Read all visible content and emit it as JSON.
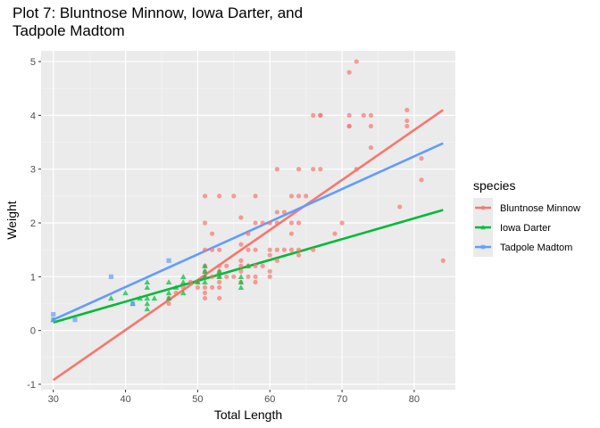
{
  "chart_data": {
    "type": "scatter",
    "title_lines": [
      "Plot 7: Bluntnose Minnow, Iowa Darter, and",
      "Tadpole Madtom"
    ],
    "xlabel": "Total Length",
    "ylabel": "Weight",
    "xlim": [
      28.3,
      85.7
    ],
    "ylim": [
      -1.1,
      5.2
    ],
    "x_ticks": [
      30,
      40,
      50,
      60,
      70,
      80
    ],
    "y_ticks": [
      -1,
      0,
      1,
      2,
      3,
      4,
      5
    ],
    "grid": true,
    "legend": {
      "title": "species",
      "placement": "right"
    },
    "series": [
      {
        "name": "Bluntnose Minnow",
        "color": "#F8766D",
        "marker": "circle",
        "fit": {
          "x": [
            30,
            84
          ],
          "y": [
            -0.92,
            4.1
          ]
        },
        "points": [
          [
            46,
            0.5
          ],
          [
            46,
            0.6
          ],
          [
            47,
            0.7
          ],
          [
            48,
            0.8
          ],
          [
            49,
            0.9
          ],
          [
            50,
            0.8
          ],
          [
            50,
            0.9
          ],
          [
            51,
            0.6
          ],
          [
            51,
            0.7
          ],
          [
            51,
            0.8
          ],
          [
            51,
            1.0
          ],
          [
            51,
            1.1
          ],
          [
            51,
            1.2
          ],
          [
            51,
            1.5
          ],
          [
            51,
            2.0
          ],
          [
            51,
            2.5
          ],
          [
            52,
            0.8
          ],
          [
            52,
            1.0
          ],
          [
            52,
            1.5
          ],
          [
            52,
            1.8
          ],
          [
            53,
            0.6
          ],
          [
            53,
            0.8
          ],
          [
            53,
            0.9
          ],
          [
            53,
            1.0
          ],
          [
            53,
            1.1
          ],
          [
            53,
            1.2
          ],
          [
            53,
            1.5
          ],
          [
            53,
            2.5
          ],
          [
            54,
            1.0
          ],
          [
            54,
            1.2
          ],
          [
            55,
            1.0
          ],
          [
            55,
            2.5
          ],
          [
            56,
            0.9
          ],
          [
            56,
            1.1
          ],
          [
            56,
            1.2
          ],
          [
            56,
            1.3
          ],
          [
            56,
            1.6
          ],
          [
            56,
            2.1
          ],
          [
            57,
            1.0
          ],
          [
            57,
            1.2
          ],
          [
            57,
            1.5
          ],
          [
            57,
            1.8
          ],
          [
            58,
            0.9
          ],
          [
            58,
            1.0
          ],
          [
            58,
            1.2
          ],
          [
            58,
            1.5
          ],
          [
            58,
            2.0
          ],
          [
            58,
            2.5
          ],
          [
            59,
            1.2
          ],
          [
            59,
            2.0
          ],
          [
            60,
            1.0
          ],
          [
            60,
            1.1
          ],
          [
            60,
            1.4
          ],
          [
            60,
            1.5
          ],
          [
            60,
            2.0
          ],
          [
            61,
            1.3
          ],
          [
            61,
            1.5
          ],
          [
            61,
            2.0
          ],
          [
            61,
            2.2
          ],
          [
            61,
            3.0
          ],
          [
            62,
            1.5
          ],
          [
            62,
            2.2
          ],
          [
            63,
            1.5
          ],
          [
            63,
            2.5
          ],
          [
            63,
            2.0
          ],
          [
            63,
            1.8
          ],
          [
            64,
            1.4
          ],
          [
            64,
            1.5
          ],
          [
            64,
            2.0
          ],
          [
            64,
            2.5
          ],
          [
            64,
            3.0
          ],
          [
            65,
            2.5
          ],
          [
            66,
            1.5
          ],
          [
            66,
            3.0
          ],
          [
            66,
            4.0
          ],
          [
            67,
            3.0
          ],
          [
            67,
            4.0
          ],
          [
            67,
            4.0
          ],
          [
            69,
            1.8
          ],
          [
            70,
            2.0
          ],
          [
            71,
            3.8
          ],
          [
            71,
            3.8
          ],
          [
            71,
            4.0
          ],
          [
            71,
            4.8
          ],
          [
            72,
            5.0
          ],
          [
            72,
            3.0
          ],
          [
            73,
            4.0
          ],
          [
            74,
            3.4
          ],
          [
            74,
            3.8
          ],
          [
            74,
            4.0
          ],
          [
            78,
            2.3
          ],
          [
            79,
            3.8
          ],
          [
            79,
            3.9
          ],
          [
            79,
            4.1
          ],
          [
            81,
            3.2
          ],
          [
            81,
            2.8
          ],
          [
            84,
            1.3
          ]
        ]
      },
      {
        "name": "Iowa Darter",
        "color": "#00BA38",
        "marker": "triangle",
        "fit": {
          "x": [
            30,
            84
          ],
          "y": [
            0.15,
            2.24
          ]
        },
        "points": [
          [
            30,
            0.2
          ],
          [
            38,
            0.6
          ],
          [
            40,
            0.7
          ],
          [
            41,
            0.5
          ],
          [
            42,
            0.6
          ],
          [
            43,
            0.4
          ],
          [
            43,
            0.5
          ],
          [
            43,
            0.6
          ],
          [
            43,
            0.8
          ],
          [
            43,
            0.9
          ],
          [
            44,
            0.6
          ],
          [
            46,
            0.6
          ],
          [
            46,
            0.7
          ],
          [
            46,
            0.9
          ],
          [
            47,
            0.8
          ],
          [
            48,
            0.7
          ],
          [
            48,
            0.9
          ],
          [
            48,
            1.0
          ],
          [
            50,
            0.9
          ],
          [
            51,
            0.9
          ],
          [
            51,
            1.0
          ],
          [
            51,
            1.1
          ],
          [
            51,
            1.2
          ],
          [
            53,
            1.0
          ],
          [
            53,
            1.1
          ],
          [
            56,
            0.8
          ],
          [
            56,
            0.9
          ],
          [
            56,
            1.0
          ],
          [
            57,
            1.2
          ]
        ]
      },
      {
        "name": "Tadpole Madtom",
        "color": "#619CFF",
        "marker": "square",
        "fit": {
          "x": [
            30,
            84
          ],
          "y": [
            0.2,
            3.48
          ]
        },
        "points": [
          [
            30,
            0.3
          ],
          [
            30,
            0.2
          ],
          [
            33,
            0.2
          ],
          [
            38,
            1.0
          ],
          [
            41,
            0.5
          ],
          [
            46,
            1.3
          ]
        ]
      }
    ]
  }
}
